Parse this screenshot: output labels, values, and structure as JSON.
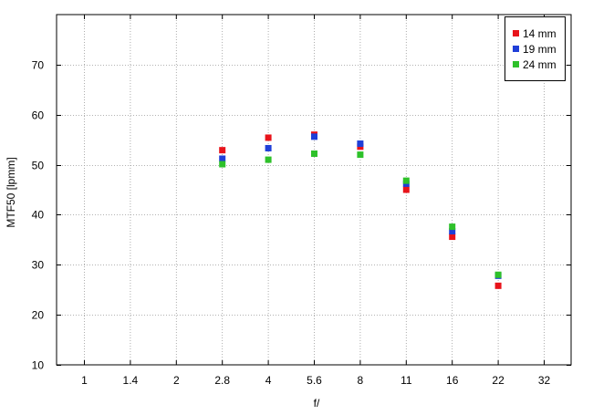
{
  "chart_data": {
    "type": "scatter",
    "xlabel": "f/",
    "ylabel": "MTF50 [lpmm]",
    "x_ticks": [
      "1",
      "1.4",
      "2",
      "2.8",
      "4",
      "5.6",
      "8",
      "11",
      "16",
      "22",
      "32"
    ],
    "y_ticks": [
      10,
      20,
      30,
      40,
      50,
      60,
      70
    ],
    "ylim": [
      10,
      80
    ],
    "grid": true,
    "legend_position": "top-right",
    "series": [
      {
        "name": "14 mm",
        "color": "#e8131a",
        "points": [
          {
            "x": "2.8",
            "y": 52.9
          },
          {
            "x": "4",
            "y": 55.4
          },
          {
            "x": "5.6",
            "y": 56.0
          },
          {
            "x": "8",
            "y": 53.6
          },
          {
            "x": "11",
            "y": 45.0
          },
          {
            "x": "16",
            "y": 35.6
          },
          {
            "x": "22",
            "y": 25.8
          }
        ]
      },
      {
        "name": "19 mm",
        "color": "#1f3fd8",
        "points": [
          {
            "x": "2.8",
            "y": 51.2
          },
          {
            "x": "4",
            "y": 53.3
          },
          {
            "x": "5.6",
            "y": 55.6
          },
          {
            "x": "8",
            "y": 54.2
          },
          {
            "x": "11",
            "y": 46.2
          },
          {
            "x": "16",
            "y": 36.7
          },
          {
            "x": "22",
            "y": 27.8
          }
        ]
      },
      {
        "name": "24 mm",
        "color": "#2ec12a",
        "points": [
          {
            "x": "2.8",
            "y": 50.1
          },
          {
            "x": "4",
            "y": 51.0
          },
          {
            "x": "5.6",
            "y": 52.2
          },
          {
            "x": "8",
            "y": 52.0
          },
          {
            "x": "11",
            "y": 46.8
          },
          {
            "x": "16",
            "y": 37.6
          },
          {
            "x": "22",
            "y": 28.0
          }
        ]
      }
    ]
  }
}
